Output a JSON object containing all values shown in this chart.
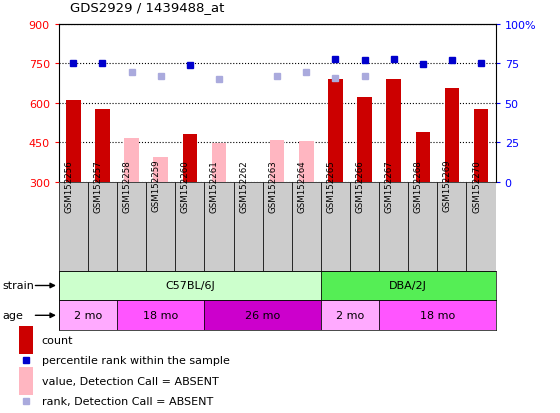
{
  "title": "GDS2929 / 1439488_at",
  "samples": [
    "GSM152256",
    "GSM152257",
    "GSM152258",
    "GSM152259",
    "GSM152260",
    "GSM152261",
    "GSM152262",
    "GSM152263",
    "GSM152264",
    "GSM152265",
    "GSM152266",
    "GSM152267",
    "GSM152268",
    "GSM152269",
    "GSM152270"
  ],
  "counts_present": [
    610,
    575,
    null,
    null,
    480,
    null,
    null,
    null,
    null,
    690,
    620,
    690,
    490,
    655,
    575
  ],
  "counts_absent": [
    null,
    null,
    465,
    395,
    null,
    445,
    null,
    460,
    455,
    null,
    null,
    null,
    null,
    null,
    null
  ],
  "ranks_present_left": [
    752,
    750,
    null,
    null,
    742,
    null,
    null,
    null,
    null,
    765,
    762,
    765,
    748,
    763,
    750
  ],
  "ranks_absent_left": [
    null,
    null,
    718,
    700,
    null,
    690,
    null,
    700,
    716,
    695,
    703,
    null,
    null,
    null,
    null
  ],
  "ylim_left": [
    300,
    900
  ],
  "ylim_right": [
    0,
    100
  ],
  "yticks_left": [
    300,
    450,
    600,
    750,
    900
  ],
  "yticks_right": [
    0,
    25,
    50,
    75,
    100
  ],
  "ytick_labels_right": [
    "0",
    "25",
    "50",
    "75",
    "100%"
  ],
  "strain_groups": [
    {
      "label": "C57BL/6J",
      "start": 0,
      "end": 9,
      "color": "#CCFFCC"
    },
    {
      "label": "DBA/2J",
      "start": 9,
      "end": 15,
      "color": "#55EE55"
    }
  ],
  "age_groups": [
    {
      "label": "2 mo",
      "start": 0,
      "end": 2,
      "color": "#FFAAFF"
    },
    {
      "label": "18 mo",
      "start": 2,
      "end": 5,
      "color": "#FF55FF"
    },
    {
      "label": "26 mo",
      "start": 5,
      "end": 9,
      "color": "#CC00CC"
    },
    {
      "label": "2 mo",
      "start": 9,
      "end": 11,
      "color": "#FFAAFF"
    },
    {
      "label": "18 mo",
      "start": 11,
      "end": 15,
      "color": "#FF55FF"
    }
  ],
  "bar_color": "#CC0000",
  "bar_absent_color": "#FFB6C1",
  "rank_color": "#0000CC",
  "rank_absent_color": "#AAAADD",
  "col_bg_color": "#CCCCCC",
  "bg_color": "#FFFFFF",
  "bar_width": 0.5,
  "marker_size": 5
}
